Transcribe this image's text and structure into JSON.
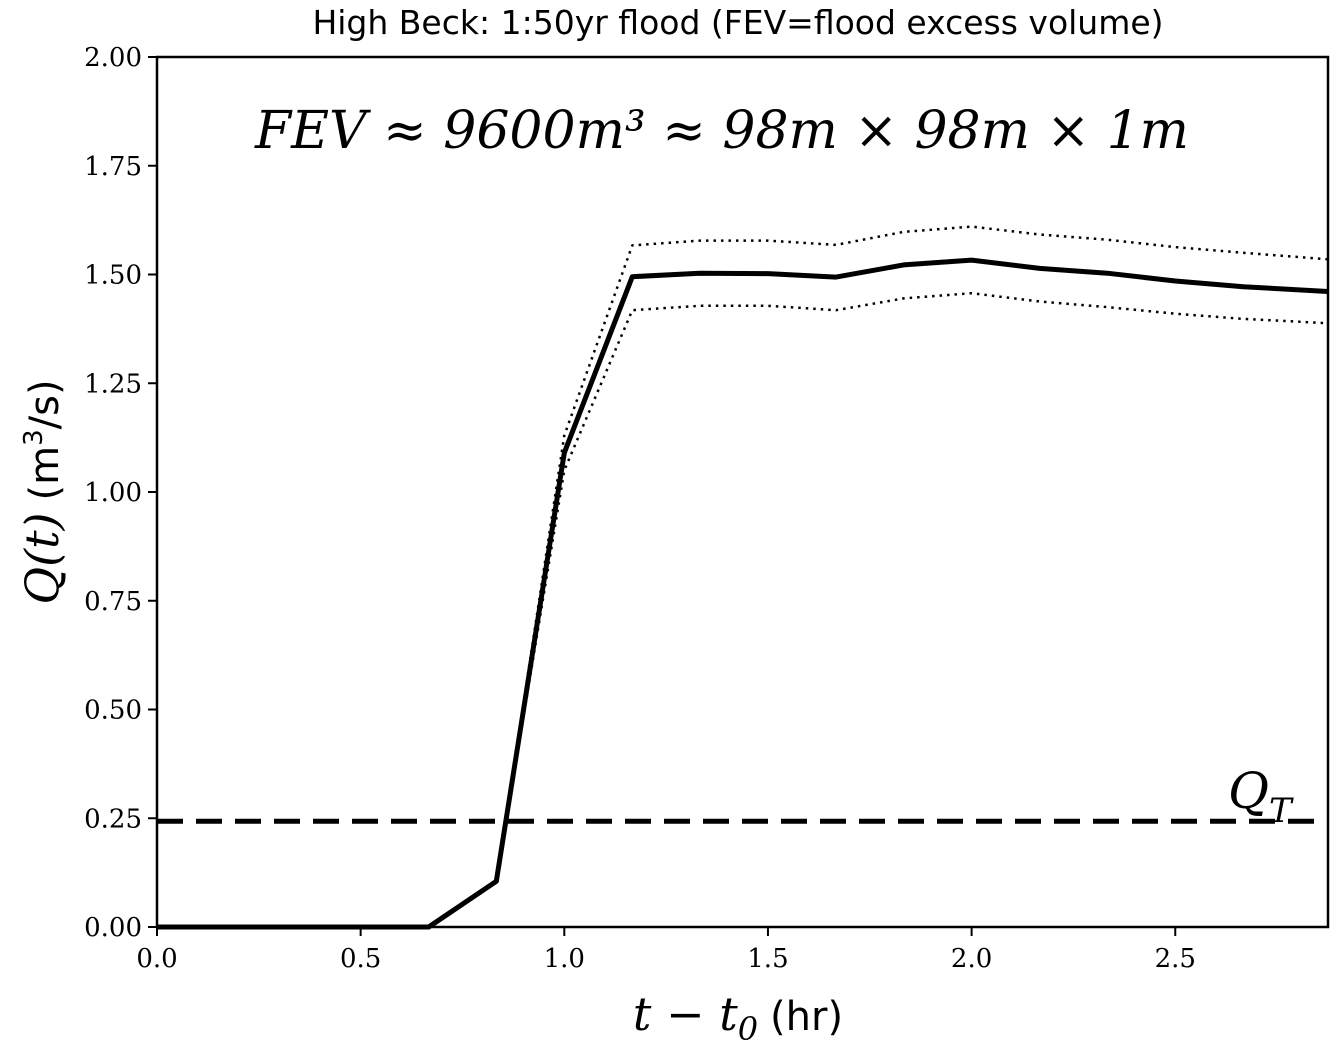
{
  "chart_data": {
    "type": "line",
    "title": "High Beck: 1:50yr flood (FEV=flood excess volume)",
    "xlabel": "t − t₀ (hr)",
    "xlabel_parts": {
      "math": "t − t",
      "sub": "0",
      "units": "(hr)"
    },
    "ylabel": "Q(t) (m³/s)",
    "ylabel_parts": {
      "math": "Q(t)",
      "units_pre": "(m",
      "sup": "3",
      "units_post": "/s)"
    },
    "xlim": [
      0.0,
      2.875
    ],
    "ylim": [
      0.0,
      2.0
    ],
    "x_ticks": [
      0.0,
      0.5,
      1.0,
      1.5,
      2.0,
      2.5
    ],
    "x_tick_labels": [
      "0.0",
      "0.5",
      "1.0",
      "1.5",
      "2.0",
      "2.5"
    ],
    "y_ticks": [
      0.0,
      0.25,
      0.5,
      0.75,
      1.0,
      1.25,
      1.5,
      1.75,
      2.0
    ],
    "y_tick_labels": [
      "0.00",
      "0.25",
      "0.50",
      "0.75",
      "1.00",
      "1.25",
      "1.50",
      "1.75",
      "2.00"
    ],
    "grid": false,
    "annotation": {
      "text": "FEV ≈ 9600m³ ≈ 98m × 98m × 1m"
    },
    "threshold": {
      "label": "Q_T",
      "label_main": "Q",
      "label_sub": "T",
      "value": 0.243,
      "style": "dashed"
    },
    "series": [
      {
        "style": "solid",
        "x": [
          0.0,
          0.667,
          0.833,
          1.0,
          1.167,
          1.333,
          1.5,
          1.667,
          1.833,
          2.0,
          2.167,
          2.333,
          2.5,
          2.667,
          2.875
        ],
        "y": [
          0.0,
          0.0,
          0.105,
          1.09,
          1.495,
          1.503,
          1.502,
          1.494,
          1.522,
          1.533,
          1.514,
          1.503,
          1.485,
          1.472,
          1.461
        ]
      },
      {
        "style": "dotted",
        "x": [
          0.0,
          0.667,
          0.833,
          1.0,
          1.167,
          1.333,
          1.5,
          1.667,
          1.833,
          2.0,
          2.167,
          2.333,
          2.5,
          2.667,
          2.875
        ],
        "y": [
          0.0,
          0.0,
          0.105,
          1.13,
          1.567,
          1.578,
          1.578,
          1.568,
          1.598,
          1.61,
          1.592,
          1.58,
          1.563,
          1.55,
          1.535
        ]
      },
      {
        "style": "dotted",
        "x": [
          0.0,
          0.667,
          0.833,
          1.0,
          1.167,
          1.333,
          1.5,
          1.667,
          1.833,
          2.0,
          2.167,
          2.333,
          2.5,
          2.667,
          2.875
        ],
        "y": [
          0.0,
          0.0,
          0.105,
          1.05,
          1.418,
          1.428,
          1.428,
          1.418,
          1.445,
          1.457,
          1.438,
          1.425,
          1.41,
          1.398,
          1.388
        ]
      }
    ]
  }
}
